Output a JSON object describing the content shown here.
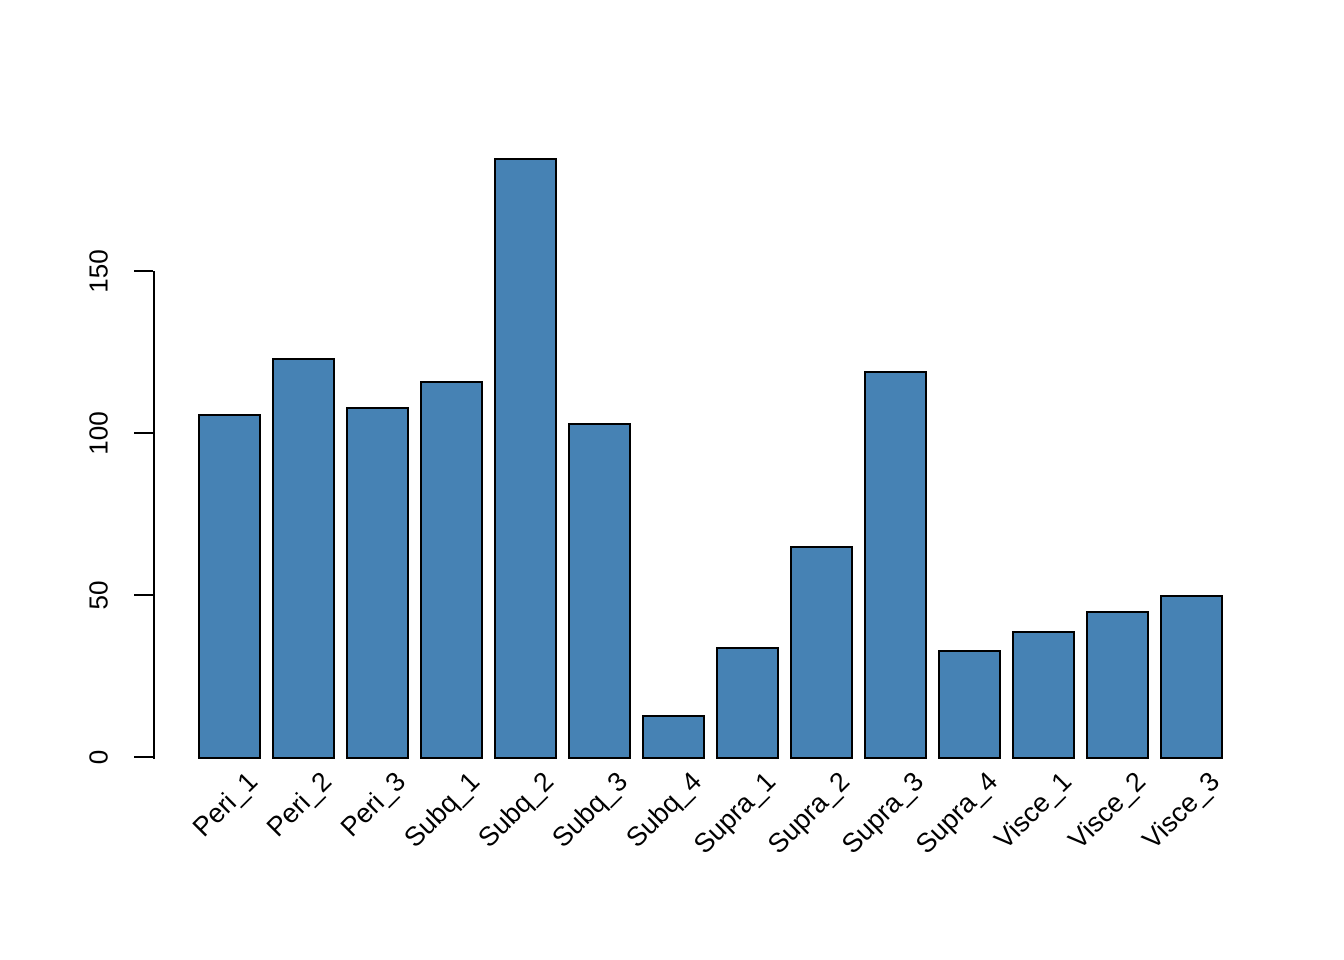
{
  "figure": {
    "background_color": "#ffffff",
    "text_color": "#000000"
  },
  "chart_data": {
    "type": "bar",
    "title": "",
    "xlabel": "",
    "ylabel": "",
    "categories": [
      "Peri_1",
      "Peri_2",
      "Peri_3",
      "Subq_1",
      "Subq_2",
      "Subq_3",
      "Subq_4",
      "Supra_1",
      "Supra_2",
      "Supra_3",
      "Supra_4",
      "Visce_1",
      "Visce_2",
      "Visce_3"
    ],
    "values": [
      106,
      123,
      108,
      116,
      185,
      103,
      13,
      34,
      65,
      119,
      33,
      39,
      45,
      50
    ],
    "yticks": [
      0,
      50,
      100,
      150
    ],
    "ytick_labels": [
      "0",
      "50",
      "100",
      "150"
    ],
    "ylim": [
      0,
      185
    ],
    "grid": false,
    "legend": "none",
    "x_label_rotation_deg": 45,
    "bar_fill_color": "#4682B4",
    "bar_border_color": "#000000",
    "axis_color": "#000000"
  }
}
